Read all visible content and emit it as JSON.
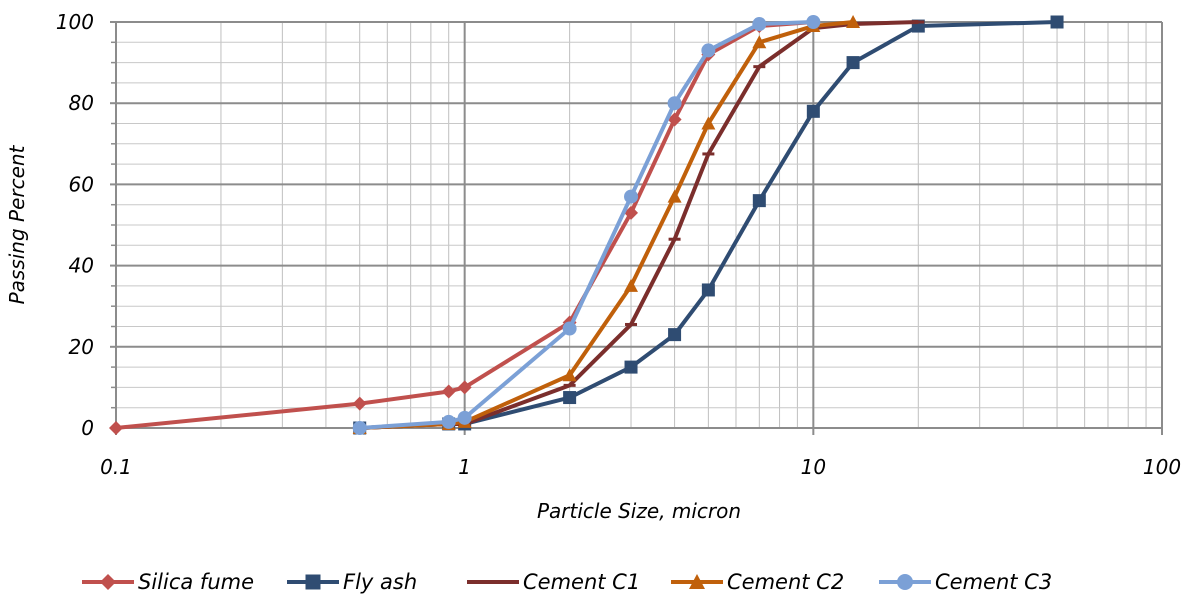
{
  "chart_data": {
    "type": "line",
    "title": "",
    "xlabel": "Particle Size, micron",
    "ylabel": "Passing Percent",
    "xscale": "log",
    "xlim": [
      0.1,
      100
    ],
    "ylim": [
      0,
      100
    ],
    "x_ticks": [
      "0.1",
      "1",
      "10",
      "100"
    ],
    "y_ticks": [
      "0",
      "20",
      "40",
      "60",
      "80",
      "100"
    ],
    "grid": true,
    "legend_position": "bottom",
    "series": [
      {
        "name": "Silica fume",
        "color": "#C0504D",
        "marker": "diamond",
        "x": [
          0.1,
          0.5,
          0.9,
          1,
          2,
          3,
          4,
          5,
          7,
          10
        ],
        "y": [
          0,
          6,
          9,
          10,
          26,
          53,
          76,
          92,
          99,
          100
        ]
      },
      {
        "name": "Fly ash",
        "color": "#2F4C72",
        "marker": "square",
        "x": [
          0.5,
          0.9,
          1,
          2,
          3,
          4,
          5,
          7,
          10,
          13,
          20,
          50
        ],
        "y": [
          0,
          1,
          1,
          7.5,
          15,
          23,
          34,
          56,
          78,
          90,
          99,
          100
        ]
      },
      {
        "name": "Cement C1",
        "color": "#7B2E2C",
        "marker": "dash",
        "x": [
          0.5,
          0.9,
          1,
          2,
          3,
          4,
          5,
          7,
          10,
          13,
          20
        ],
        "y": [
          0,
          1,
          1,
          10.5,
          25.5,
          46.5,
          67.5,
          89,
          98.5,
          99.5,
          100
        ]
      },
      {
        "name": "Cement C2",
        "color": "#C0600B",
        "marker": "triangle",
        "x": [
          0.5,
          0.9,
          1,
          2,
          3,
          4,
          5,
          7,
          10,
          13
        ],
        "y": [
          0,
          1,
          1.5,
          13,
          35,
          57,
          75,
          95,
          99,
          100
        ]
      },
      {
        "name": "Cement C3",
        "color": "#7BA0D6",
        "marker": "circle",
        "x": [
          0.5,
          0.9,
          1,
          2,
          3,
          4,
          5,
          7,
          10
        ],
        "y": [
          0,
          1.5,
          2.5,
          24.5,
          57,
          80,
          93,
          99.5,
          100
        ]
      }
    ]
  }
}
